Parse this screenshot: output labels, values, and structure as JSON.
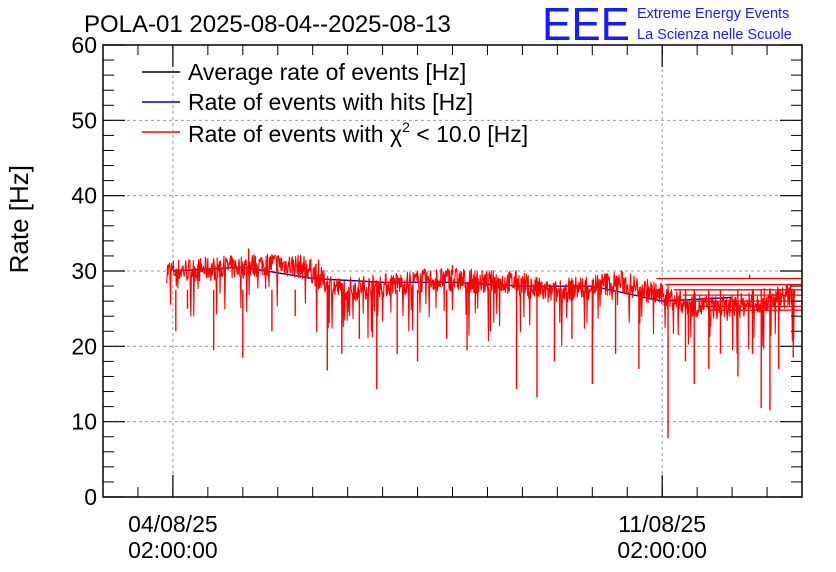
{
  "chart_data": {
    "type": "line",
    "title": "POLA-01 2025-08-04--2025-08-13",
    "ylabel": "Rate [Hz]",
    "xlabel": "",
    "ylim": [
      0,
      60
    ],
    "yticks": [
      0,
      10,
      20,
      30,
      40,
      50,
      60
    ],
    "xlim": [
      "2025-08-03T02:00:00",
      "2025-08-13T02:00:00"
    ],
    "xticks": [
      {
        "x": "2025-08-04T02:00:00",
        "date_label": "04/08/25",
        "time_label": "02:00:00"
      },
      {
        "x": "2025-08-11T02:00:00",
        "date_label": "11/08/25",
        "time_label": "02:00:00"
      }
    ],
    "grid": true,
    "legend_position": "top-left",
    "series": [
      {
        "name": "Average rate of events [Hz]",
        "color": "#000000",
        "x": [
          "2025-08-04T02:00",
          "2025-08-05T02:00",
          "2025-08-06T02:00",
          "2025-08-07T02:00",
          "2025-08-08T02:00",
          "2025-08-09T02:00",
          "2025-08-10T02:00",
          "2025-08-11T02:00",
          "2025-08-12T02:00"
        ],
        "y": [
          30,
          30.5,
          29,
          28.5,
          28.5,
          28,
          28,
          26,
          26.5
        ]
      },
      {
        "name": "Rate of events with hits [Hz]",
        "color": "#0000cc",
        "x": [
          "2025-08-04T02:00",
          "2025-08-05T02:00",
          "2025-08-06T02:00",
          "2025-08-07T02:00",
          "2025-08-08T02:00",
          "2025-08-09T02:00",
          "2025-08-10T02:00",
          "2025-08-11T02:00",
          "2025-08-12T02:00"
        ],
        "y": [
          30,
          30.5,
          29,
          28.5,
          28.5,
          28,
          28,
          26,
          26.5
        ]
      },
      {
        "name": "Rate of events with χ² < 10.0 [Hz]",
        "name_main": "Rate of events with ",
        "name_chi": "χ",
        "name_sup": "2",
        "name_rest": " < 10.0 [Hz]",
        "color": "#ff0000",
        "x": [
          "2025-08-04T00:00",
          "2025-08-04T12:00",
          "2025-08-05T00:00",
          "2025-08-05T12:00",
          "2025-08-06T00:00",
          "2025-08-06T06:00",
          "2025-08-06T12:00",
          "2025-08-07T00:00",
          "2025-08-07T12:00",
          "2025-08-08T00:00",
          "2025-08-08T12:00",
          "2025-08-09T00:00",
          "2025-08-09T12:00",
          "2025-08-10T00:00",
          "2025-08-10T12:00",
          "2025-08-11T00:00",
          "2025-08-11T12:00",
          "2025-08-12T00:00",
          "2025-08-12T12:00",
          "2025-08-13T00:00"
        ],
        "y": [
          30,
          30.2,
          30.5,
          31,
          30.5,
          28.5,
          27.5,
          28,
          28.5,
          29,
          28.5,
          28.5,
          27,
          28,
          28.5,
          27,
          25.5,
          25,
          26,
          27
        ]
      }
    ],
    "dips": [
      {
        "x": "2025-08-04T03:00",
        "y": 22
      },
      {
        "x": "2025-08-04T07:00",
        "y": 25
      },
      {
        "x": "2025-08-04T16:00",
        "y": 19.5
      },
      {
        "x": "2025-08-05T02:00",
        "y": 18.5
      },
      {
        "x": "2025-08-05T12:00",
        "y": 22
      },
      {
        "x": "2025-08-05T20:00",
        "y": 24
      },
      {
        "x": "2025-08-06T07:00",
        "y": 16.8
      },
      {
        "x": "2025-08-06T12:00",
        "y": 19
      },
      {
        "x": "2025-08-06T18:00",
        "y": 21
      },
      {
        "x": "2025-08-07T00:00",
        "y": 14.3
      },
      {
        "x": "2025-08-07T07:00",
        "y": 19
      },
      {
        "x": "2025-08-07T14:00",
        "y": 18
      },
      {
        "x": "2025-08-08T00:00",
        "y": 21
      },
      {
        "x": "2025-08-08T07:00",
        "y": 19.5
      },
      {
        "x": "2025-08-08T15:00",
        "y": 22
      },
      {
        "x": "2025-08-09T00:00",
        "y": 14.3
      },
      {
        "x": "2025-08-09T07:00",
        "y": 13.2
      },
      {
        "x": "2025-08-09T13:00",
        "y": 18
      },
      {
        "x": "2025-08-09T19:00",
        "y": 21
      },
      {
        "x": "2025-08-10T02:00",
        "y": 15
      },
      {
        "x": "2025-08-10T10:00",
        "y": 19
      },
      {
        "x": "2025-08-10T18:00",
        "y": 17
      },
      {
        "x": "2025-08-11T04:00",
        "y": 7.8
      },
      {
        "x": "2025-08-11T10:00",
        "y": 18
      },
      {
        "x": "2025-08-11T13:00",
        "y": 15
      },
      {
        "x": "2025-08-11T18:00",
        "y": 17
      },
      {
        "x": "2025-08-11T22:00",
        "y": 19
      },
      {
        "x": "2025-08-12T04:00",
        "y": 16
      },
      {
        "x": "2025-08-12T09:00",
        "y": 19
      },
      {
        "x": "2025-08-12T12:00",
        "y": 11.8
      },
      {
        "x": "2025-08-12T15:00",
        "y": 11.5
      },
      {
        "x": "2025-08-12T18:00",
        "y": 17
      },
      {
        "x": "2025-08-12T23:00",
        "y": 18.5
      }
    ],
    "peaks": [
      {
        "x": "2025-08-05T04:00",
        "y": 33
      },
      {
        "x": "2025-08-06T04:00",
        "y": 31.5
      },
      {
        "x": "2025-08-08T02:00",
        "y": 30.8
      },
      {
        "x": "2025-08-12T08:00",
        "y": 29
      }
    ],
    "trailing_levels": [
      29,
      28.2,
      27.5,
      26.8,
      26,
      25.3,
      24.8
    ]
  },
  "logo": {
    "mark": "EEE",
    "line1": "Extreme Energy Events",
    "line2": "La Scienza nelle Scuole",
    "color": "#1a1aff"
  }
}
